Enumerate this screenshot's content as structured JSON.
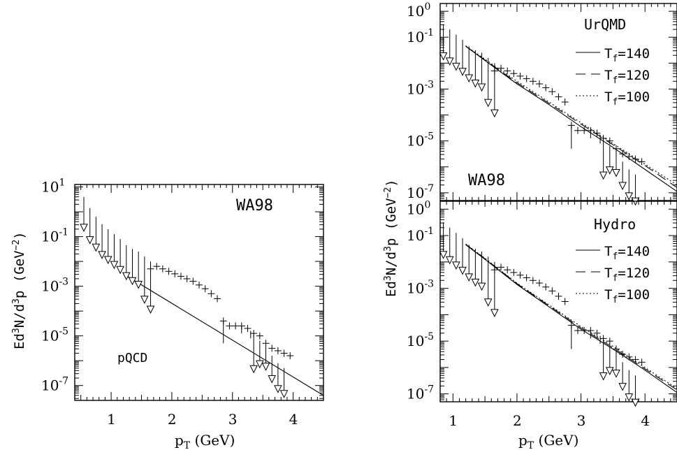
{
  "chart_data": [
    {
      "id": "left",
      "type": "scatter",
      "xlabel": "p_T (GeV)",
      "ylabel": "Ed³N/d³p (GeV⁻²)",
      "xlim": [
        0.4,
        4.5
      ],
      "ylim_log10": [
        -7.6,
        1.1
      ],
      "x_ticks": [
        1,
        2,
        3,
        4
      ],
      "y_ticks": [
        {
          "exp": 1,
          "label_base": "10",
          "label_exp": "1"
        },
        {
          "exp": -1,
          "label_base": "10",
          "label_exp": "-1"
        },
        {
          "exp": -3,
          "label_base": "10",
          "label_exp": "-3"
        },
        {
          "exp": -5,
          "label_base": "10",
          "label_exp": "-5"
        },
        {
          "exp": -7,
          "label_base": "10",
          "label_exp": "-7"
        }
      ],
      "annotations": [
        "WA98",
        "pQCD"
      ],
      "curves": [
        {
          "name": "pQCD",
          "style": "solid",
          "x": [
            1.2,
            4.5
          ],
          "log10y": [
            -2.5,
            -7.4
          ]
        }
      ],
      "upper_limits": [
        [
          0.55,
          0.6,
          -0.5
        ],
        [
          0.65,
          0.15,
          -1.0
        ],
        [
          0.75,
          -0.2,
          -1.3
        ],
        [
          0.85,
          -0.5,
          -1.6
        ],
        [
          0.95,
          -0.7,
          -1.8
        ],
        [
          1.05,
          -0.9,
          -2.0
        ],
        [
          1.15,
          -1.1,
          -2.2
        ],
        [
          1.25,
          -1.35,
          -2.45
        ],
        [
          1.35,
          -1.5,
          -2.65
        ],
        [
          1.45,
          -1.6,
          -2.8
        ],
        [
          1.55,
          -1.8,
          -3.4
        ],
        [
          1.65,
          -2.0,
          -3.8
        ]
      ],
      "points": [
        [
          1.65,
          -2.3
        ],
        [
          1.75,
          -2.2
        ],
        [
          1.85,
          -2.3
        ],
        [
          1.95,
          -2.4
        ],
        [
          2.05,
          -2.5
        ],
        [
          2.15,
          -2.6
        ],
        [
          2.25,
          -2.7
        ],
        [
          2.35,
          -2.8
        ],
        [
          2.45,
          -2.95
        ],
        [
          2.55,
          -3.1
        ],
        [
          2.65,
          -3.3
        ],
        [
          2.75,
          -3.5
        ],
        [
          2.85,
          -4.4
        ],
        [
          2.95,
          -4.6
        ],
        [
          3.05,
          -4.6
        ],
        [
          3.15,
          -4.6
        ],
        [
          3.25,
          -4.7
        ],
        [
          3.35,
          -4.9
        ],
        [
          3.45,
          -5.0
        ],
        [
          3.55,
          -5.3
        ],
        [
          3.65,
          -5.5
        ],
        [
          3.75,
          -5.6
        ],
        [
          3.85,
          -5.7
        ],
        [
          3.95,
          -5.8
        ]
      ],
      "lower_limits_on_points": [
        [
          2.85,
          -4.4,
          -5.3
        ],
        [
          3.15,
          -4.6,
          -4.9
        ],
        [
          3.3,
          -4.8,
          -5.1
        ]
      ],
      "upper_limits_tail": [
        [
          3.35,
          -4.9,
          -6.2
        ],
        [
          3.45,
          -5.2,
          -6.0
        ],
        [
          3.55,
          -5.4,
          -6.1
        ],
        [
          3.65,
          -5.8,
          -6.6
        ],
        [
          3.75,
          -6.1,
          -7.0
        ],
        [
          3.85,
          -6.3,
          -7.2
        ]
      ]
    },
    {
      "id": "right-top",
      "type": "scatter",
      "xlabel": "",
      "ylabel": "",
      "xlim": [
        0.8,
        4.5
      ],
      "ylim_log10": [
        -7.3,
        0.3
      ],
      "y_ticks": [
        {
          "exp": 0,
          "label_base": "10",
          "label_exp": "0"
        },
        {
          "exp": -1,
          "label_base": "10",
          "label_exp": "-1"
        },
        {
          "exp": -3,
          "label_base": "10",
          "label_exp": "-3"
        },
        {
          "exp": -5,
          "label_base": "10",
          "label_exp": "-5"
        },
        {
          "exp": -7,
          "label_base": "10",
          "label_exp": "-7"
        }
      ],
      "annotations": [
        "UrQMD",
        "WA98"
      ],
      "legend": {
        "placement": "top-right",
        "entries": [
          {
            "style": "solid",
            "label_base": "T",
            "label_sub": "f",
            "label_value": "=140"
          },
          {
            "style": "dashed",
            "label_base": "T",
            "label_sub": "f",
            "label_value": "=120"
          },
          {
            "style": "dotted",
            "label_base": "T",
            "label_sub": "f",
            "label_value": "=100"
          }
        ]
      },
      "curves": [
        {
          "name": "T_f=140",
          "style": "solid",
          "x": [
            1.2,
            1.5,
            2.0,
            2.5,
            3.0,
            3.5,
            4.0,
            4.5
          ],
          "log10y": [
            -1.35,
            -1.9,
            -2.8,
            -3.6,
            -4.45,
            -5.25,
            -6.1,
            -6.95
          ]
        },
        {
          "name": "T_f=120",
          "style": "dashed",
          "x": [
            1.2,
            1.5,
            2.0,
            2.5,
            3.0,
            3.5,
            4.0,
            4.5
          ],
          "log10y": [
            -1.35,
            -1.88,
            -2.75,
            -3.55,
            -4.35,
            -5.15,
            -5.95,
            -6.8
          ]
        },
        {
          "name": "T_f=100",
          "style": "dotted",
          "x": [
            1.2,
            1.5,
            2.0,
            2.5,
            3.0,
            3.5,
            4.0,
            4.5
          ],
          "log10y": [
            -1.33,
            -1.85,
            -2.7,
            -3.5,
            -4.3,
            -5.1,
            -5.9,
            -6.7
          ]
        }
      ]
    },
    {
      "id": "right-bottom",
      "type": "scatter",
      "xlabel": "p_T (GeV)",
      "ylabel": "Ed³N/d³p (GeV⁻²)",
      "xlim": [
        0.8,
        4.5
      ],
      "ylim_log10": [
        -7.3,
        0.3
      ],
      "x_ticks": [
        1,
        2,
        3,
        4
      ],
      "y_ticks": [
        {
          "exp": 0,
          "label_base": "10",
          "label_exp": "0"
        },
        {
          "exp": -1,
          "label_base": "10",
          "label_exp": "-1"
        },
        {
          "exp": -3,
          "label_base": "10",
          "label_exp": "-3"
        },
        {
          "exp": -5,
          "label_base": "10",
          "label_exp": "-5"
        },
        {
          "exp": -7,
          "label_base": "10",
          "label_exp": "-7"
        }
      ],
      "annotations": [
        "Hydro"
      ],
      "legend": {
        "placement": "top-right",
        "entries": [
          {
            "style": "solid",
            "label_base": "T",
            "label_sub": "f",
            "label_value": "=140"
          },
          {
            "style": "dashed",
            "label_base": "T",
            "label_sub": "f",
            "label_value": "=120"
          },
          {
            "style": "dotted",
            "label_base": "T",
            "label_sub": "f",
            "label_value": "=100"
          }
        ]
      },
      "curves": [
        {
          "name": "T_f=140",
          "style": "solid",
          "x": [
            1.2,
            1.5,
            2.0,
            2.5,
            3.0,
            3.5,
            4.0,
            4.5
          ],
          "log10y": [
            -1.35,
            -1.9,
            -2.85,
            -3.7,
            -4.55,
            -5.3,
            -6.1,
            -6.95
          ]
        },
        {
          "name": "T_f=120",
          "style": "dashed",
          "x": [
            1.2,
            1.5,
            2.0,
            2.5,
            3.0,
            3.5,
            4.0,
            4.5
          ],
          "log10y": [
            -1.33,
            -1.88,
            -2.82,
            -3.66,
            -4.5,
            -5.25,
            -6.05,
            -6.85
          ]
        },
        {
          "name": "T_f=100",
          "style": "dotted",
          "x": [
            1.2,
            1.5,
            2.0,
            2.5,
            3.0,
            3.5,
            4.0,
            4.5
          ],
          "log10y": [
            -1.32,
            -1.86,
            -2.8,
            -3.63,
            -4.45,
            -5.2,
            -6.0,
            -6.8
          ]
        }
      ]
    }
  ],
  "texts": {
    "left_title": "WA98",
    "left_model": "pQCD",
    "left_xlabel_base": "p",
    "left_xlabel_sub": "T",
    "left_xlabel_tail": " (GeV)",
    "left_ylabel": "Ed",
    "left_ylabel_3a": "3",
    "left_ylabel_mid": "N/d",
    "left_ylabel_3b": "3",
    "left_ylabel_tail": "p  (GeV",
    "left_ylabel_exp": "−2",
    "left_ylabel_close": ")",
    "rt_model": "UrQMD",
    "rt_title": "WA98",
    "rb_model": "Hydro",
    "r_xlabel_base": "p",
    "r_xlabel_sub": "T",
    "r_xlabel_tail": " (GeV)"
  }
}
